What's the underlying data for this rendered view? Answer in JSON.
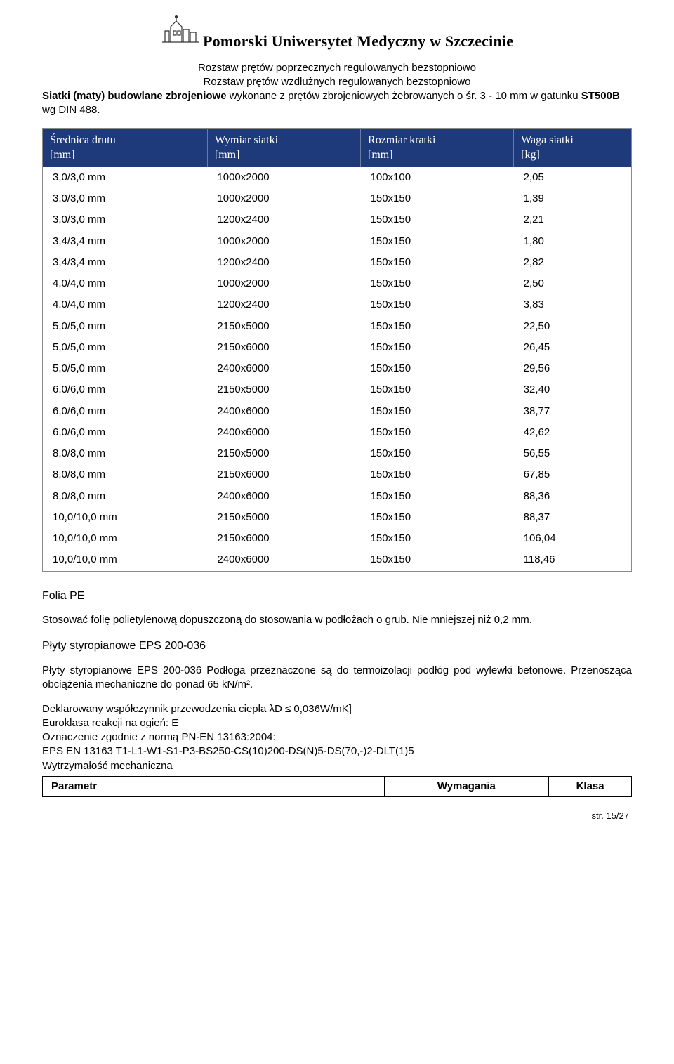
{
  "header": {
    "university_name": "Pomorski Uniwersytet Medyczny w Szczecinie"
  },
  "intro": {
    "line1": "Rozstaw prętów poprzecznych regulowanych bezstopniowo",
    "line2": "Rozstaw prętów wzdłużnych regulowanych bezstopniowo",
    "line3_pre": "Siatki (maty) budowlane zbrojeniowe wykonane z prętów zbrojeniowych żebrowanych o śr. 3 - 10 mm w gatunku ",
    "line3_bold": "ST500B",
    "line3_post": " wg DIN 488."
  },
  "table": {
    "headers": [
      "Średnica drutu [mm]",
      "Wymiar siatki [mm]",
      "Rozmiar kratki [mm]",
      "Waga siatki [kg]"
    ],
    "header_bg": "#1f3a7a",
    "header_color": "#ffffff",
    "col_widths": [
      "28%",
      "26%",
      "26%",
      "20%"
    ],
    "rows": [
      [
        "3,0/3,0 mm",
        "1000x2000",
        "100x100",
        "2,05"
      ],
      [
        "3,0/3,0 mm",
        "1000x2000",
        "150x150",
        "1,39"
      ],
      [
        "3,0/3,0 mm",
        "1200x2400",
        "150x150",
        "2,21"
      ],
      [
        "3,4/3,4 mm",
        "1000x2000",
        "150x150",
        "1,80"
      ],
      [
        "3,4/3,4 mm",
        "1200x2400",
        "150x150",
        "2,82"
      ],
      [
        "4,0/4,0 mm",
        "1000x2000",
        "150x150",
        "2,50"
      ],
      [
        "4,0/4,0 mm",
        "1200x2400",
        "150x150",
        "3,83"
      ],
      [
        "5,0/5,0 mm",
        "2150x5000",
        "150x150",
        "22,50"
      ],
      [
        "5,0/5,0 mm",
        "2150x6000",
        "150x150",
        "26,45"
      ],
      [
        "5,0/5,0 mm",
        "2400x6000",
        "150x150",
        "29,56"
      ],
      [
        "6,0/6,0 mm",
        "2150x5000",
        "150x150",
        "32,40"
      ],
      [
        "6,0/6,0 mm",
        "2400x6000",
        "150x150",
        "38,77"
      ],
      [
        "6,0/6,0 mm",
        "2400x6000",
        "150x150",
        "42,62"
      ],
      [
        "8,0/8,0 mm",
        "2150x5000",
        "150x150",
        "56,55"
      ],
      [
        "8,0/8,0 mm",
        "2150x6000",
        "150x150",
        "67,85"
      ],
      [
        "8,0/8,0 mm",
        "2400x6000",
        "150x150",
        "88,36"
      ],
      [
        "10,0/10,0 mm",
        "2150x5000",
        "150x150",
        "88,37"
      ],
      [
        "10,0/10,0 mm",
        "2150x6000",
        "150x150",
        "106,04"
      ],
      [
        "10,0/10,0 mm",
        "2400x6000",
        "150x150",
        "118,46"
      ]
    ]
  },
  "sections": {
    "folia_title": "Folia PE",
    "folia_text": "Stosować folię polietylenową dopuszczoną do stosowania w podłożach o grub. Nie mniejszej niż 0,2 mm.",
    "eps_title": "Płyty styropianowe EPS 200-036",
    "eps_para": "Płyty styropianowe EPS 200-036 Podłoga przeznaczone są do termoizolacji podłóg pod wylewki betonowe. Przenosząca obciążenia mechaniczne do ponad 65 kN/m².",
    "eps_l1": "Deklarowany współczynnik przewodzenia ciepła λD ≤ 0,036W/mK]",
    "eps_l2": "Euroklasa reakcji na ogień: E",
    "eps_l3": "Oznaczenie zgodnie z normą PN-EN 13163:2004:",
    "eps_l4": "EPS EN 13163 T1-L1-W1-S1-P3-BS250-CS(10)200-DS(N)5-DS(70,-)2-DLT(1)5",
    "eps_l5": "Wytrzymałość mechaniczna"
  },
  "footer_table": {
    "headers": [
      "Parametr",
      "Wymagania",
      "Klasa"
    ],
    "col_widths": [
      "58%",
      "28%",
      "14%"
    ]
  },
  "page_number": "str. 15/27"
}
